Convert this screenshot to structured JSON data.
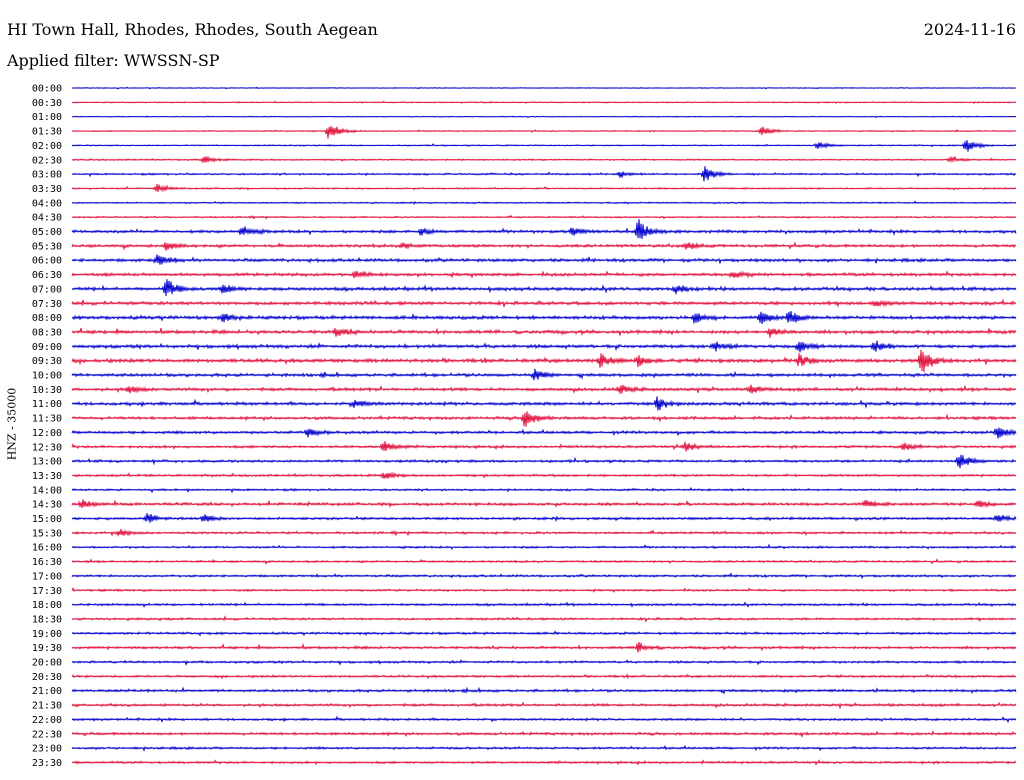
{
  "header": {
    "station": "HI Town Hall, Rhodes, Rhodes, South Aegean",
    "date": "2024-11-16",
    "filter_text": "Applied filter: WWSSN-SP"
  },
  "chart_data": {
    "type": "line",
    "title": "HI Town Hall, Rhodes, Rhodes, South Aegean",
    "date": "2024-11-16",
    "filter": "WWSSN-SP",
    "ylabel": "HNZ - 35000",
    "xlabel": "",
    "grid": false,
    "legend": "none",
    "row_labels": [
      "00:00",
      "00:30",
      "01:00",
      "01:30",
      "02:00",
      "02:30",
      "03:00",
      "03:30",
      "04:00",
      "04:30",
      "05:00",
      "05:30",
      "06:00",
      "06:30",
      "07:00",
      "07:30",
      "08:00",
      "08:30",
      "09:00",
      "09:30",
      "10:00",
      "10:30",
      "11:00",
      "11:30",
      "12:00",
      "12:30",
      "13:00",
      "13:30",
      "14:00",
      "14:30",
      "15:00",
      "15:30",
      "16:00",
      "16:30",
      "17:00",
      "17:30",
      "18:00",
      "18:30",
      "19:00",
      "19:30",
      "20:00",
      "20:30",
      "21:00",
      "21:30",
      "22:00",
      "22:30",
      "23:00",
      "23:30"
    ],
    "series_colors": [
      "#0000cc",
      "#e0103c"
    ],
    "noise_level": [
      0.3,
      0.4,
      0.3,
      0.4,
      0.45,
      0.5,
      0.6,
      0.55,
      0.5,
      0.55,
      1.0,
      1.0,
      1.1,
      1.1,
      1.2,
      1.2,
      1.2,
      1.2,
      1.2,
      1.3,
      1.1,
      1.1,
      1.1,
      1.0,
      1.0,
      0.9,
      0.9,
      0.8,
      0.7,
      1.0,
      0.9,
      0.8,
      0.7,
      0.7,
      0.8,
      0.7,
      0.8,
      0.8,
      0.8,
      0.9,
      0.8,
      0.8,
      0.9,
      0.9,
      0.8,
      0.9,
      0.8,
      0.8
    ],
    "events": [
      {
        "row": 3,
        "t": 0.272,
        "amp": 10
      },
      {
        "row": 3,
        "t": 0.73,
        "amp": 5
      },
      {
        "row": 4,
        "t": 0.79,
        "amp": 4
      },
      {
        "row": 4,
        "t": 0.947,
        "amp": 8
      },
      {
        "row": 5,
        "t": 0.14,
        "amp": 4
      },
      {
        "row": 5,
        "t": 0.93,
        "amp": 3
      },
      {
        "row": 6,
        "t": 0.58,
        "amp": 4
      },
      {
        "row": 6,
        "t": 0.67,
        "amp": 10
      },
      {
        "row": 7,
        "t": 0.09,
        "amp": 4
      },
      {
        "row": 10,
        "t": 0.18,
        "amp": 6
      },
      {
        "row": 10,
        "t": 0.37,
        "amp": 4
      },
      {
        "row": 10,
        "t": 0.53,
        "amp": 4
      },
      {
        "row": 10,
        "t": 0.6,
        "amp": 12
      },
      {
        "row": 11,
        "t": 0.1,
        "amp": 4
      },
      {
        "row": 11,
        "t": 0.35,
        "amp": 3
      },
      {
        "row": 11,
        "t": 0.65,
        "amp": 4
      },
      {
        "row": 12,
        "t": 0.09,
        "amp": 6
      },
      {
        "row": 13,
        "t": 0.3,
        "amp": 4
      },
      {
        "row": 13,
        "t": 0.7,
        "amp": 4
      },
      {
        "row": 14,
        "t": 0.1,
        "amp": 10
      },
      {
        "row": 14,
        "t": 0.16,
        "amp": 6
      },
      {
        "row": 14,
        "t": 0.64,
        "amp": 5
      },
      {
        "row": 15,
        "t": 0.85,
        "amp": 4
      },
      {
        "row": 16,
        "t": 0.16,
        "amp": 4
      },
      {
        "row": 16,
        "t": 0.66,
        "amp": 6
      },
      {
        "row": 16,
        "t": 0.73,
        "amp": 6
      },
      {
        "row": 16,
        "t": 0.76,
        "amp": 8
      },
      {
        "row": 17,
        "t": 0.28,
        "amp": 5
      },
      {
        "row": 17,
        "t": 0.74,
        "amp": 5
      },
      {
        "row": 18,
        "t": 0.68,
        "amp": 5
      },
      {
        "row": 18,
        "t": 0.77,
        "amp": 6
      },
      {
        "row": 18,
        "t": 0.85,
        "amp": 6
      },
      {
        "row": 19,
        "t": 0.56,
        "amp": 8
      },
      {
        "row": 19,
        "t": 0.6,
        "amp": 6
      },
      {
        "row": 19,
        "t": 0.77,
        "amp": 6
      },
      {
        "row": 19,
        "t": 0.9,
        "amp": 14
      },
      {
        "row": 20,
        "t": 0.49,
        "amp": 6
      },
      {
        "row": 21,
        "t": 0.06,
        "amp": 4
      },
      {
        "row": 21,
        "t": 0.58,
        "amp": 5
      },
      {
        "row": 21,
        "t": 0.72,
        "amp": 4
      },
      {
        "row": 22,
        "t": 0.3,
        "amp": 4
      },
      {
        "row": 22,
        "t": 0.62,
        "amp": 7
      },
      {
        "row": 23,
        "t": 0.48,
        "amp": 10
      },
      {
        "row": 24,
        "t": 0.25,
        "amp": 4
      },
      {
        "row": 24,
        "t": 0.98,
        "amp": 7
      },
      {
        "row": 25,
        "t": 0.33,
        "amp": 6
      },
      {
        "row": 25,
        "t": 0.65,
        "amp": 5
      },
      {
        "row": 25,
        "t": 0.88,
        "amp": 4
      },
      {
        "row": 26,
        "t": 0.94,
        "amp": 9
      },
      {
        "row": 27,
        "t": 0.33,
        "amp": 4
      },
      {
        "row": 29,
        "t": 0.01,
        "amp": 5
      },
      {
        "row": 29,
        "t": 0.84,
        "amp": 4
      },
      {
        "row": 29,
        "t": 0.96,
        "amp": 4
      },
      {
        "row": 30,
        "t": 0.08,
        "amp": 5
      },
      {
        "row": 30,
        "t": 0.14,
        "amp": 4
      },
      {
        "row": 30,
        "t": 0.98,
        "amp": 4
      },
      {
        "row": 31,
        "t": 0.05,
        "amp": 4
      },
      {
        "row": 39,
        "t": 0.6,
        "amp": 5
      }
    ]
  }
}
